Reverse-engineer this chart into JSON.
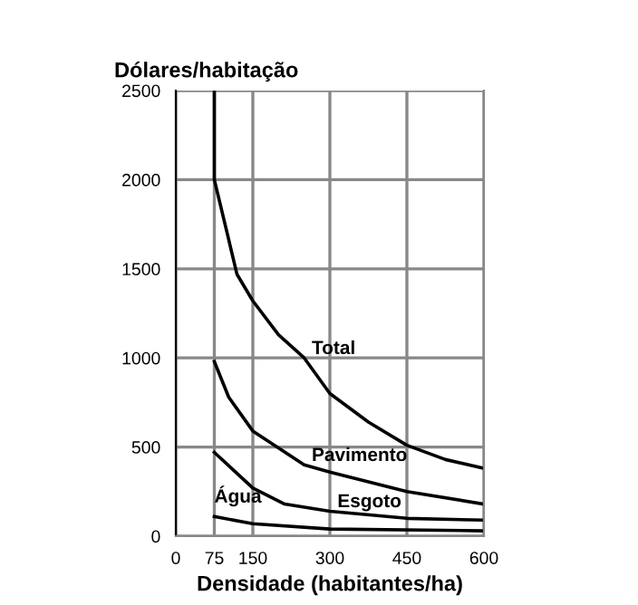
{
  "chart_data": {
    "type": "line",
    "ylabel": "Dólares/habitação",
    "xlabel": "Densidade (habitantes/ha)",
    "series": [
      {
        "name": "Total",
        "color": "#000000",
        "x": [
          75,
          75,
          100,
          119,
          150,
          200,
          250,
          300,
          375,
          450,
          525,
          600
        ],
        "values": [
          2500,
          2000,
          1700,
          1470,
          1320,
          1130,
          1000,
          800,
          640,
          510,
          430,
          380
        ]
      },
      {
        "name": "Pavimento",
        "color": "#000000",
        "x": [
          75,
          103,
          150,
          250,
          300,
          450,
          600
        ],
        "values": [
          980,
          780,
          590,
          400,
          360,
          250,
          180
        ]
      },
      {
        "name": "Esgoto",
        "color": "#000000",
        "x": [
          75,
          150,
          212,
          300,
          450,
          600
        ],
        "values": [
          470,
          270,
          180,
          140,
          100,
          90
        ]
      },
      {
        "name": "Água",
        "color": "#000000",
        "x": [
          75,
          150,
          300,
          600
        ],
        "values": [
          110,
          70,
          40,
          30
        ]
      }
    ],
    "xlim": [
      0,
      600
    ],
    "xticks": [
      0,
      75,
      150,
      300,
      450,
      600
    ],
    "ylim": [
      0,
      2500
    ],
    "yticks": [
      0,
      500,
      1000,
      1500,
      2000,
      2500
    ],
    "grid": true,
    "marker": "none",
    "line_style": "solid",
    "legend": false
  }
}
